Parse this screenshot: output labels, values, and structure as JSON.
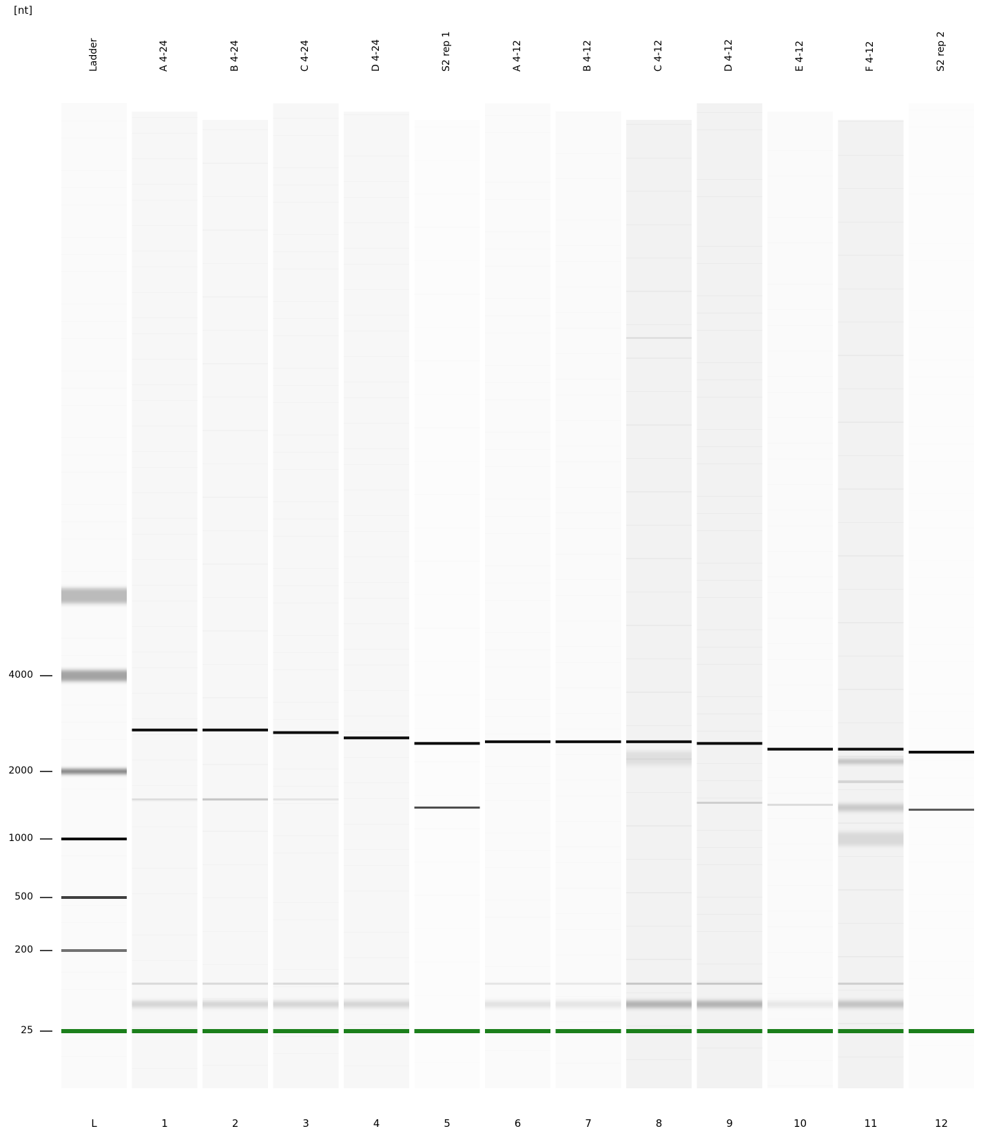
{
  "axis": {
    "unit": "[nt]",
    "ticks": [
      {
        "label": "4000",
        "value": 4000
      },
      {
        "label": "2000",
        "value": 2000
      },
      {
        "label": "1000",
        "value": 1000
      },
      {
        "label": "500",
        "value": 500
      },
      {
        "label": "200",
        "value": 200
      },
      {
        "label": "25",
        "value": 25
      }
    ]
  },
  "colors": {
    "background": "#ffffff",
    "lane": "#fbfbfb",
    "band": "#000000",
    "marker": "#1b7f1b"
  },
  "lanes": [
    {
      "name": "Ladder",
      "number": "L",
      "intensity": 0.02,
      "bands": [
        {
          "nt": 6000,
          "strength": 0.25,
          "width": 22
        },
        {
          "nt": 4000,
          "strength": 0.35,
          "width": 16
        },
        {
          "nt": 2000,
          "strength": 0.6,
          "width": 6
        },
        {
          "nt": 1000,
          "strength": 0.95,
          "width": 4
        },
        {
          "nt": 500,
          "strength": 0.75,
          "width": 4
        },
        {
          "nt": 200,
          "strength": 0.55,
          "width": 4
        }
      ]
    },
    {
      "name": "A 4-24",
      "number": "1",
      "intensity": 0.03,
      "bands": [
        {
          "nt": 2700,
          "strength": 0.95,
          "width": 4
        },
        {
          "nt": 1500,
          "strength": 0.1,
          "width": 3
        },
        {
          "nt": 85,
          "strength": 0.12,
          "width": 3
        },
        {
          "nt": 50,
          "strength": 0.15,
          "width": 9
        }
      ]
    },
    {
      "name": "B 4-24",
      "number": "2",
      "intensity": 0.03,
      "bands": [
        {
          "nt": 2700,
          "strength": 0.95,
          "width": 4
        },
        {
          "nt": 1500,
          "strength": 0.2,
          "width": 3
        },
        {
          "nt": 85,
          "strength": 0.12,
          "width": 3
        },
        {
          "nt": 50,
          "strength": 0.15,
          "width": 9
        }
      ]
    },
    {
      "name": "C 4-24",
      "number": "3",
      "intensity": 0.03,
      "bands": [
        {
          "nt": 2650,
          "strength": 0.95,
          "width": 4
        },
        {
          "nt": 1500,
          "strength": 0.08,
          "width": 3
        },
        {
          "nt": 85,
          "strength": 0.12,
          "width": 3
        },
        {
          "nt": 50,
          "strength": 0.15,
          "width": 9
        }
      ]
    },
    {
      "name": "D 4-24",
      "number": "4",
      "intensity": 0.03,
      "bands": [
        {
          "nt": 2550,
          "strength": 0.95,
          "width": 4
        },
        {
          "nt": 85,
          "strength": 0.1,
          "width": 3
        },
        {
          "nt": 50,
          "strength": 0.15,
          "width": 9
        }
      ]
    },
    {
      "name": "S2 rep 1",
      "number": "5",
      "intensity": 0.01,
      "bands": [
        {
          "nt": 2450,
          "strength": 0.95,
          "width": 4
        },
        {
          "nt": 1380,
          "strength": 0.7,
          "width": 3
        }
      ]
    },
    {
      "name": "A 4-12",
      "number": "6",
      "intensity": 0.02,
      "bands": [
        {
          "nt": 2480,
          "strength": 0.95,
          "width": 4
        },
        {
          "nt": 85,
          "strength": 0.08,
          "width": 3
        },
        {
          "nt": 50,
          "strength": 0.1,
          "width": 9
        }
      ]
    },
    {
      "name": "B 4-12",
      "number": "7",
      "intensity": 0.02,
      "bands": [
        {
          "nt": 2480,
          "strength": 0.95,
          "width": 4
        },
        {
          "nt": 85,
          "strength": 0.07,
          "width": 3
        },
        {
          "nt": 50,
          "strength": 0.09,
          "width": 9
        }
      ]
    },
    {
      "name": "C 4-12",
      "number": "8",
      "intensity": 0.05,
      "bands": [
        {
          "nt": 2480,
          "strength": 0.95,
          "width": 4
        },
        {
          "nt": 8500,
          "strength": 0.1,
          "width": 2
        },
        {
          "nt": 2200,
          "strength": 0.08,
          "width": 20
        },
        {
          "nt": 85,
          "strength": 0.18,
          "width": 3
        },
        {
          "nt": 50,
          "strength": 0.28,
          "width": 10
        }
      ]
    },
    {
      "name": "D 4-12",
      "number": "9",
      "intensity": 0.05,
      "bands": [
        {
          "nt": 2450,
          "strength": 0.95,
          "width": 4
        },
        {
          "nt": 1450,
          "strength": 0.15,
          "width": 3
        },
        {
          "nt": 85,
          "strength": 0.18,
          "width": 3
        },
        {
          "nt": 50,
          "strength": 0.28,
          "width": 10
        }
      ]
    },
    {
      "name": "E 4-12",
      "number": "10",
      "intensity": 0.02,
      "bands": [
        {
          "nt": 2350,
          "strength": 0.95,
          "width": 4
        },
        {
          "nt": 1420,
          "strength": 0.12,
          "width": 3
        },
        {
          "nt": 50,
          "strength": 0.08,
          "width": 9
        }
      ]
    },
    {
      "name": "F 4-12",
      "number": "11",
      "intensity": 0.05,
      "bands": [
        {
          "nt": 2350,
          "strength": 0.95,
          "width": 4
        },
        {
          "nt": 2150,
          "strength": 0.25,
          "width": 6
        },
        {
          "nt": 1800,
          "strength": 0.12,
          "width": 4
        },
        {
          "nt": 1380,
          "strength": 0.18,
          "width": 10
        },
        {
          "nt": 1000,
          "strength": 0.1,
          "width": 20
        },
        {
          "nt": 85,
          "strength": 0.15,
          "width": 3
        },
        {
          "nt": 50,
          "strength": 0.2,
          "width": 10
        }
      ]
    },
    {
      "name": "S2 rep 2",
      "number": "12",
      "intensity": 0.01,
      "bands": [
        {
          "nt": 2300,
          "strength": 0.95,
          "width": 4
        },
        {
          "nt": 1350,
          "strength": 0.65,
          "width": 3
        }
      ]
    }
  ]
}
